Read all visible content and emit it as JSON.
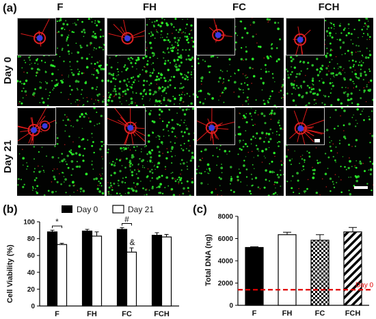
{
  "panel_a": {
    "label": "(a)",
    "columns": [
      "F",
      "FH",
      "FC",
      "FCH"
    ],
    "rows": [
      "Day 0",
      "Day 21"
    ]
  },
  "chart_data": [
    {
      "panel": "(b)",
      "type": "bar",
      "categories": [
        "F",
        "FH",
        "FC",
        "FCH"
      ],
      "series": [
        {
          "name": "Day 0",
          "values": [
            88,
            89,
            91,
            84
          ],
          "errors": [
            2,
            2,
            2,
            3
          ],
          "color": "#000000"
        },
        {
          "name": "Day 21",
          "values": [
            73,
            83,
            64,
            82
          ],
          "errors": [
            1.5,
            5,
            5,
            3
          ],
          "color": "#ffffff"
        }
      ],
      "ylabel": "Cell Viability (%)",
      "ylim": [
        0,
        100
      ],
      "yticks": [
        0,
        20,
        40,
        60,
        80,
        100
      ],
      "legend": "top",
      "annotations": [
        {
          "text": "*",
          "category": "F",
          "type": "bracket"
        },
        {
          "text": "#",
          "category": "FC",
          "type": "bracket"
        },
        {
          "text": "&",
          "category": "FC",
          "series": "Day 21"
        }
      ]
    },
    {
      "panel": "(c)",
      "type": "bar",
      "categories": [
        "F",
        "FH",
        "FC",
        "FCH"
      ],
      "values": [
        5200,
        6350,
        5850,
        6600
      ],
      "errors": [
        60,
        220,
        500,
        400
      ],
      "fills": [
        "solid",
        "open",
        "checkered",
        "hatched"
      ],
      "ylabel": "Total DNA (ng)",
      "ylim": [
        0,
        8000
      ],
      "yticks": [
        0,
        2000,
        4000,
        6000,
        8000
      ],
      "reference_line": {
        "value": 1400,
        "label": "Day 0",
        "color": "#e00000"
      }
    }
  ]
}
